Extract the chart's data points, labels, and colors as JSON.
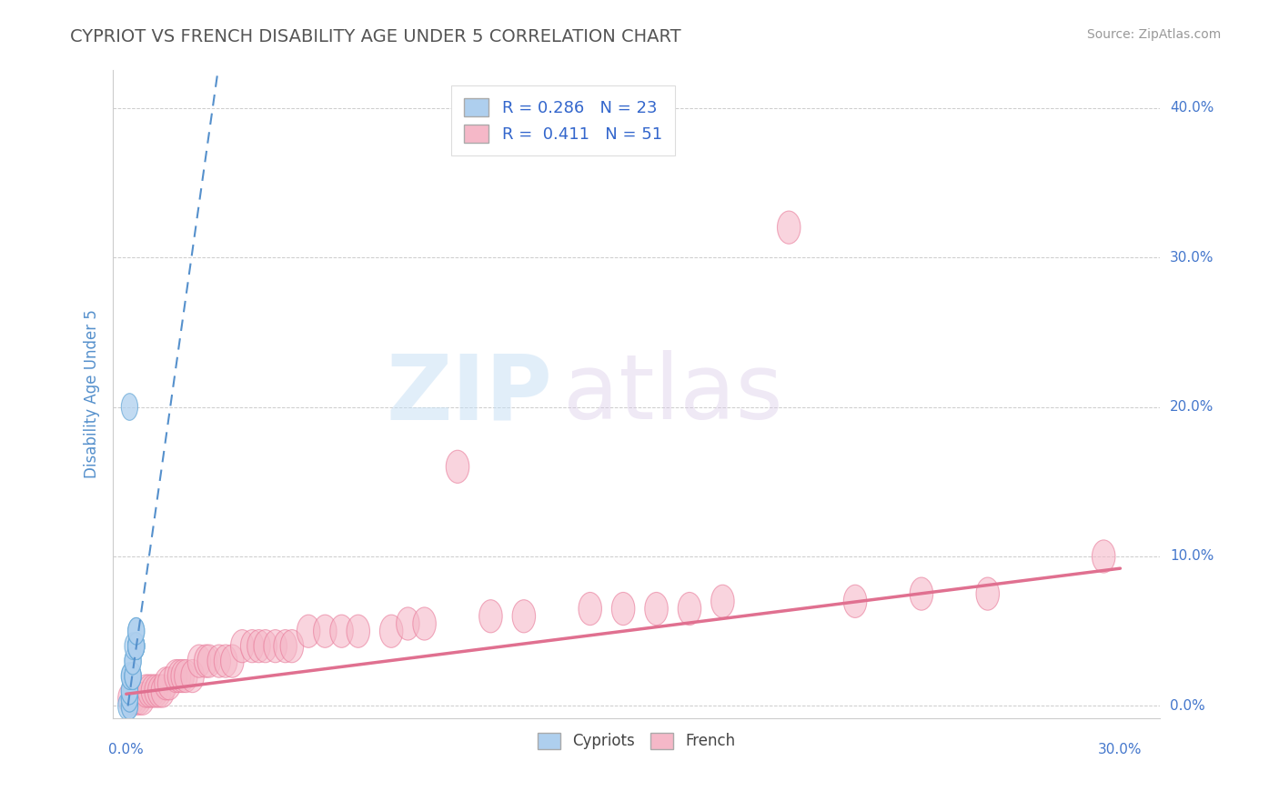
{
  "title": "CYPRIOT VS FRENCH DISABILITY AGE UNDER 5 CORRELATION CHART",
  "source": "Source: ZipAtlas.com",
  "ylabel": "Disability Age Under 5",
  "x_lim": [
    -0.004,
    0.312
  ],
  "y_lim": [
    -0.008,
    0.425
  ],
  "y_ticks": [
    0.0,
    0.1,
    0.2,
    0.3,
    0.4
  ],
  "y_tick_labels": [
    "0.0%",
    "10.0%",
    "20.0%",
    "30.0%",
    "40.0%"
  ],
  "x_start_label": "0.0%",
  "x_end_label": "30.0%",
  "cypriot_R": 0.286,
  "cypriot_N": 23,
  "french_R": 0.411,
  "french_N": 51,
  "cypriot_color": "#aecfee",
  "french_color": "#f5b8c8",
  "cypriot_edge_color": "#6aaad8",
  "french_edge_color": "#e87898",
  "cypriot_line_color": "#5590cc",
  "french_line_color": "#e07090",
  "legend_label_cypriot": "Cypriots",
  "legend_label_french": "French",
  "watermark_zip": "ZIP",
  "watermark_atlas": "atlas",
  "background_color": "#ffffff",
  "grid_color": "#cccccc",
  "title_color": "#555555",
  "source_color": "#999999",
  "tick_color": "#4477cc",
  "ylabel_color": "#5590cc",
  "cypriot_x": [
    0.0,
    0.001,
    0.001,
    0.001,
    0.001,
    0.001,
    0.001,
    0.001,
    0.001,
    0.002,
    0.002,
    0.002,
    0.002,
    0.002,
    0.002,
    0.003,
    0.003,
    0.003,
    0.003,
    0.003,
    0.003,
    0.003,
    0.001
  ],
  "cypriot_y": [
    0.0,
    0.0,
    0.0,
    0.005,
    0.005,
    0.01,
    0.01,
    0.02,
    0.02,
    0.02,
    0.02,
    0.02,
    0.03,
    0.03,
    0.04,
    0.04,
    0.04,
    0.04,
    0.04,
    0.04,
    0.05,
    0.05,
    0.2
  ],
  "french_x": [
    0.001,
    0.002,
    0.003,
    0.004,
    0.005,
    0.006,
    0.007,
    0.008,
    0.009,
    0.01,
    0.011,
    0.012,
    0.013,
    0.015,
    0.016,
    0.017,
    0.018,
    0.02,
    0.022,
    0.024,
    0.025,
    0.028,
    0.03,
    0.032,
    0.035,
    0.038,
    0.04,
    0.042,
    0.045,
    0.048,
    0.05,
    0.055,
    0.06,
    0.065,
    0.07,
    0.08,
    0.085,
    0.09,
    0.1,
    0.11,
    0.12,
    0.14,
    0.15,
    0.16,
    0.17,
    0.18,
    0.2,
    0.22,
    0.24,
    0.26,
    0.295
  ],
  "french_y": [
    0.005,
    0.005,
    0.005,
    0.005,
    0.005,
    0.01,
    0.01,
    0.01,
    0.01,
    0.01,
    0.01,
    0.015,
    0.015,
    0.02,
    0.02,
    0.02,
    0.02,
    0.02,
    0.03,
    0.03,
    0.03,
    0.03,
    0.03,
    0.03,
    0.04,
    0.04,
    0.04,
    0.04,
    0.04,
    0.04,
    0.04,
    0.05,
    0.05,
    0.05,
    0.05,
    0.05,
    0.055,
    0.055,
    0.16,
    0.06,
    0.06,
    0.065,
    0.065,
    0.065,
    0.065,
    0.07,
    0.32,
    0.07,
    0.075,
    0.075,
    0.1
  ],
  "french_trendline_x": [
    0.0,
    0.3
  ],
  "french_trendline_y": [
    0.008,
    0.092
  ],
  "cypriot_trendline_x": [
    0.0005,
    0.028
  ],
  "cypriot_trendline_y": [
    0.0,
    0.43
  ]
}
